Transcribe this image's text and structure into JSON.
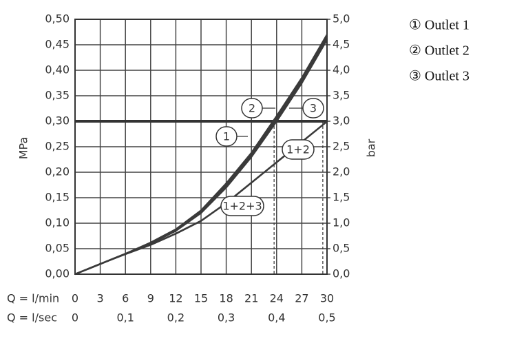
{
  "chart_data": {
    "type": "line",
    "y_label": "MPa",
    "y2_label": "bar",
    "x_label": "Q = l/min",
    "x2_label": "Q = l/sec",
    "x": [
      0,
      3,
      6,
      9,
      12,
      15,
      18,
      21,
      24,
      27,
      30
    ],
    "series": [
      {
        "label": "1",
        "color": "#3a3a3a",
        "values": [
          0,
          0.02,
          0.04,
          0.06,
          0.085,
          0.12,
          0.17,
          0.23,
          0.3,
          0.375,
          0.46
        ]
      },
      {
        "label": "2",
        "color": "#3a3a3a",
        "values": [
          0,
          0.02,
          0.04,
          0.062,
          0.088,
          0.125,
          0.178,
          0.238,
          0.31,
          0.385,
          0.47
        ]
      },
      {
        "label": "3",
        "color": "#3a3a3a",
        "values": [
          0,
          0.02,
          0.04,
          0.06,
          0.086,
          0.122,
          0.174,
          0.234,
          0.305,
          0.38,
          0.465
        ]
      },
      {
        "label": "1+2",
        "color": "#3a3a3a",
        "values": [
          0,
          0.02,
          0.04,
          0.058,
          0.08,
          0.105,
          0.14,
          0.18,
          0.22,
          0.26,
          0.3
        ]
      },
      {
        "label": "1+2+3",
        "color": "#3a3a3a",
        "values": [
          0,
          0.02,
          0.039,
          0.057,
          0.079,
          0.104,
          0.139,
          0.179,
          0.219,
          0.259,
          0.299
        ]
      }
    ],
    "hline": 0.3,
    "dashed_x": [
      23.7,
      29.5
    ],
    "xlim": [
      0,
      30
    ],
    "xticks": [
      0,
      3,
      6,
      9,
      12,
      15,
      18,
      21,
      24,
      27,
      30
    ],
    "x2lim": [
      0,
      0.5
    ],
    "x2ticks": [
      0,
      {
        "value": 0.1,
        "label": "0,1"
      },
      {
        "value": 0.2,
        "label": "0,2"
      },
      {
        "value": 0.3,
        "label": "0,3"
      },
      {
        "value": 0.4,
        "label": "0,4"
      },
      {
        "value": 0.5,
        "label": "0,5"
      }
    ],
    "ylim": [
      0,
      0.5
    ],
    "yticks": [
      {
        "value": 0,
        "label": "0,00"
      },
      {
        "value": 0.05,
        "label": "0,05"
      },
      {
        "value": 0.1,
        "label": "0,10"
      },
      {
        "value": 0.15,
        "label": "0,15"
      },
      {
        "value": 0.2,
        "label": "0,20"
      },
      {
        "value": 0.25,
        "label": "0,25"
      },
      {
        "value": 0.3,
        "label": "0,30"
      },
      {
        "value": 0.35,
        "label": "0,35"
      },
      {
        "value": 0.4,
        "label": "0,40"
      },
      {
        "value": 0.45,
        "label": "0,45"
      },
      {
        "value": 0.5,
        "label": "0,50"
      }
    ],
    "y2lim": [
      0,
      5
    ],
    "y2ticks": [
      {
        "value": 0,
        "label": "0,0"
      },
      {
        "value": 0.5,
        "label": "0,5"
      },
      {
        "value": 1,
        "label": "1,0"
      },
      {
        "value": 1.5,
        "label": "1,5"
      },
      {
        "value": 2,
        "label": "2,0"
      },
      {
        "value": 2.5,
        "label": "2,5"
      },
      {
        "value": 3,
        "label": "3,0"
      },
      {
        "value": 3.5,
        "label": "3,5"
      },
      {
        "value": 4,
        "label": "4,0"
      },
      {
        "value": 4.5,
        "label": "4,5"
      },
      {
        "value": 5,
        "label": "5,0"
      }
    ],
    "grid": true,
    "legend": [
      "① Outlet 1",
      "② Outlet 2",
      "③ Outlet 3"
    ]
  }
}
